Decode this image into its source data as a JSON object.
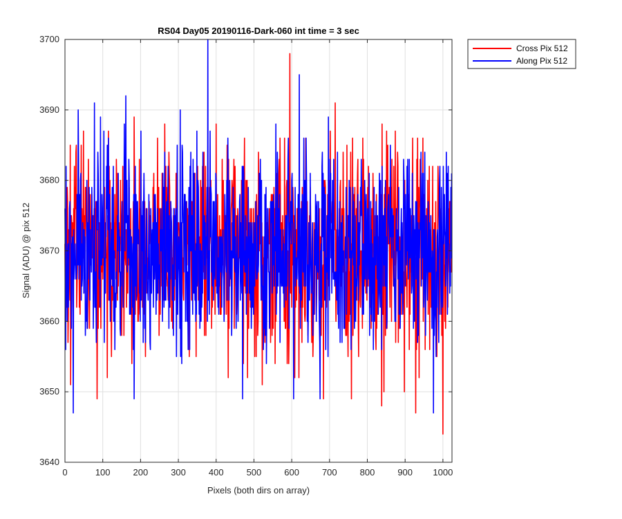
{
  "chart_data": {
    "type": "line",
    "title": "RS04 Day05 20190116-Dark-060 int time = 3 sec",
    "xlabel": "Pixels (both dirs on array)",
    "ylabel": "Signal (ADU) @ pix 512",
    "xlim": [
      0,
      1024
    ],
    "ylim": [
      3640,
      3700
    ],
    "xticks": [
      0,
      100,
      200,
      300,
      400,
      500,
      600,
      700,
      800,
      900,
      1000
    ],
    "yticks": [
      3640,
      3650,
      3660,
      3670,
      3680,
      3690,
      3700
    ],
    "grid": true,
    "legend_position": "outside-top-right",
    "series": [
      {
        "name": "Cross Pix 512",
        "color": "#ff0000",
        "points": 1024,
        "mean": 3670,
        "std": 7,
        "min": 3644,
        "max": 3698
      },
      {
        "name": "Along Pix 512",
        "color": "#0000ff",
        "points": 1024,
        "mean": 3670,
        "std": 7,
        "min": 3647,
        "max": 3700
      }
    ],
    "highlights": [
      {
        "series": 0,
        "x": 595,
        "y": 3698
      },
      {
        "series": 0,
        "x": 1000,
        "y": 3644
      },
      {
        "series": 0,
        "x": 928,
        "y": 3647
      },
      {
        "series": 0,
        "x": 838,
        "y": 3648
      },
      {
        "series": 0,
        "x": 400,
        "y": 3688
      },
      {
        "series": 0,
        "x": 115,
        "y": 3687
      },
      {
        "series": 0,
        "x": 15,
        "y": 3651
      },
      {
        "series": 0,
        "x": 85,
        "y": 3649
      },
      {
        "series": 1,
        "x": 378,
        "y": 3700
      },
      {
        "series": 1,
        "x": 620,
        "y": 3695
      },
      {
        "series": 1,
        "x": 78,
        "y": 3691
      },
      {
        "series": 1,
        "x": 35,
        "y": 3690
      },
      {
        "series": 1,
        "x": 305,
        "y": 3690
      },
      {
        "series": 1,
        "x": 22,
        "y": 3647
      },
      {
        "series": 1,
        "x": 975,
        "y": 3647
      },
      {
        "series": 1,
        "x": 183,
        "y": 3649
      },
      {
        "series": 1,
        "x": 605,
        "y": 3649
      },
      {
        "series": 1,
        "x": 470,
        "y": 3649
      }
    ]
  }
}
